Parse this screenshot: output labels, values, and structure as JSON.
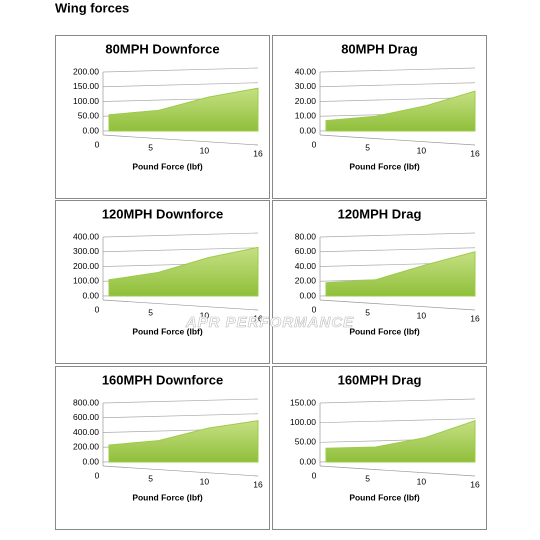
{
  "title": "Wing forces",
  "watermark": "APR PERFORMANCE",
  "chart_data": [
    {
      "type": "area",
      "title": "80MPH Downforce",
      "x_label": "Pound Force (lbf)",
      "categories": [
        "0",
        "5",
        "10",
        "16"
      ],
      "values": [
        55,
        70,
        115,
        145
      ],
      "color": "#9ccb4a",
      "ylim": [
        0,
        200
      ],
      "yticks": [
        {
          "value": 0,
          "label": "0.00"
        },
        {
          "value": 50,
          "label": "50.00"
        },
        {
          "value": 100,
          "label": "100.00"
        },
        {
          "value": 150,
          "label": "150.00"
        },
        {
          "value": 200,
          "label": "200.00"
        }
      ],
      "grid": true
    },
    {
      "type": "area",
      "title": "80MPH Drag",
      "x_label": "Pound Force (lbf)",
      "categories": [
        "0",
        "5",
        "10",
        "16"
      ],
      "values": [
        7,
        10,
        17,
        27
      ],
      "color": "#9ccb4a",
      "ylim": [
        0,
        40
      ],
      "yticks": [
        {
          "value": 0,
          "label": "0.00"
        },
        {
          "value": 10,
          "label": "10.00"
        },
        {
          "value": 20,
          "label": "20.00"
        },
        {
          "value": 30,
          "label": "30.00"
        },
        {
          "value": 40,
          "label": "40.00"
        }
      ],
      "grid": true
    },
    {
      "type": "area",
      "title": "120MPH Downforce",
      "x_label": "Pound Force (lbf)",
      "categories": [
        "0",
        "5",
        "10",
        "16"
      ],
      "values": [
        110,
        160,
        260,
        330
      ],
      "color": "#9ccb4a",
      "ylim": [
        0,
        400
      ],
      "yticks": [
        {
          "value": 0,
          "label": "0.00"
        },
        {
          "value": 100,
          "label": "100.00"
        },
        {
          "value": 200,
          "label": "200.00"
        },
        {
          "value": 300,
          "label": "300.00"
        },
        {
          "value": 400,
          "label": "400.00"
        }
      ],
      "grid": true
    },
    {
      "type": "area",
      "title": "120MPH Drag",
      "x_label": "Pound Force (lbf)",
      "categories": [
        "0",
        "5",
        "10",
        "16"
      ],
      "values": [
        18,
        22,
        42,
        60
      ],
      "color": "#9ccb4a",
      "ylim": [
        0,
        80
      ],
      "yticks": [
        {
          "value": 0,
          "label": "0.00"
        },
        {
          "value": 20,
          "label": "20.00"
        },
        {
          "value": 40,
          "label": "40.00"
        },
        {
          "value": 60,
          "label": "60.00"
        },
        {
          "value": 80,
          "label": "80.00"
        }
      ],
      "grid": true
    },
    {
      "type": "area",
      "title": "160MPH Downforce",
      "x_label": "Pound Force (lbf)",
      "categories": [
        "0",
        "5",
        "10",
        "16"
      ],
      "values": [
        230,
        290,
        460,
        560
      ],
      "color": "#9ccb4a",
      "ylim": [
        0,
        800
      ],
      "yticks": [
        {
          "value": 0,
          "label": "0.00"
        },
        {
          "value": 200,
          "label": "200.00"
        },
        {
          "value": 400,
          "label": "400.00"
        },
        {
          "value": 600,
          "label": "600.00"
        },
        {
          "value": 800,
          "label": "800.00"
        }
      ],
      "grid": true
    },
    {
      "type": "area",
      "title": "160MPH Drag",
      "x_label": "Pound Force (lbf)",
      "categories": [
        "0",
        "5",
        "10",
        "16"
      ],
      "values": [
        35,
        38,
        62,
        105
      ],
      "color": "#9ccb4a",
      "ylim": [
        0,
        150
      ],
      "yticks": [
        {
          "value": 0,
          "label": "0.00"
        },
        {
          "value": 50,
          "label": "50.00"
        },
        {
          "value": 100,
          "label": "100.00"
        },
        {
          "value": 150,
          "label": "150.00"
        }
      ],
      "grid": true
    }
  ]
}
